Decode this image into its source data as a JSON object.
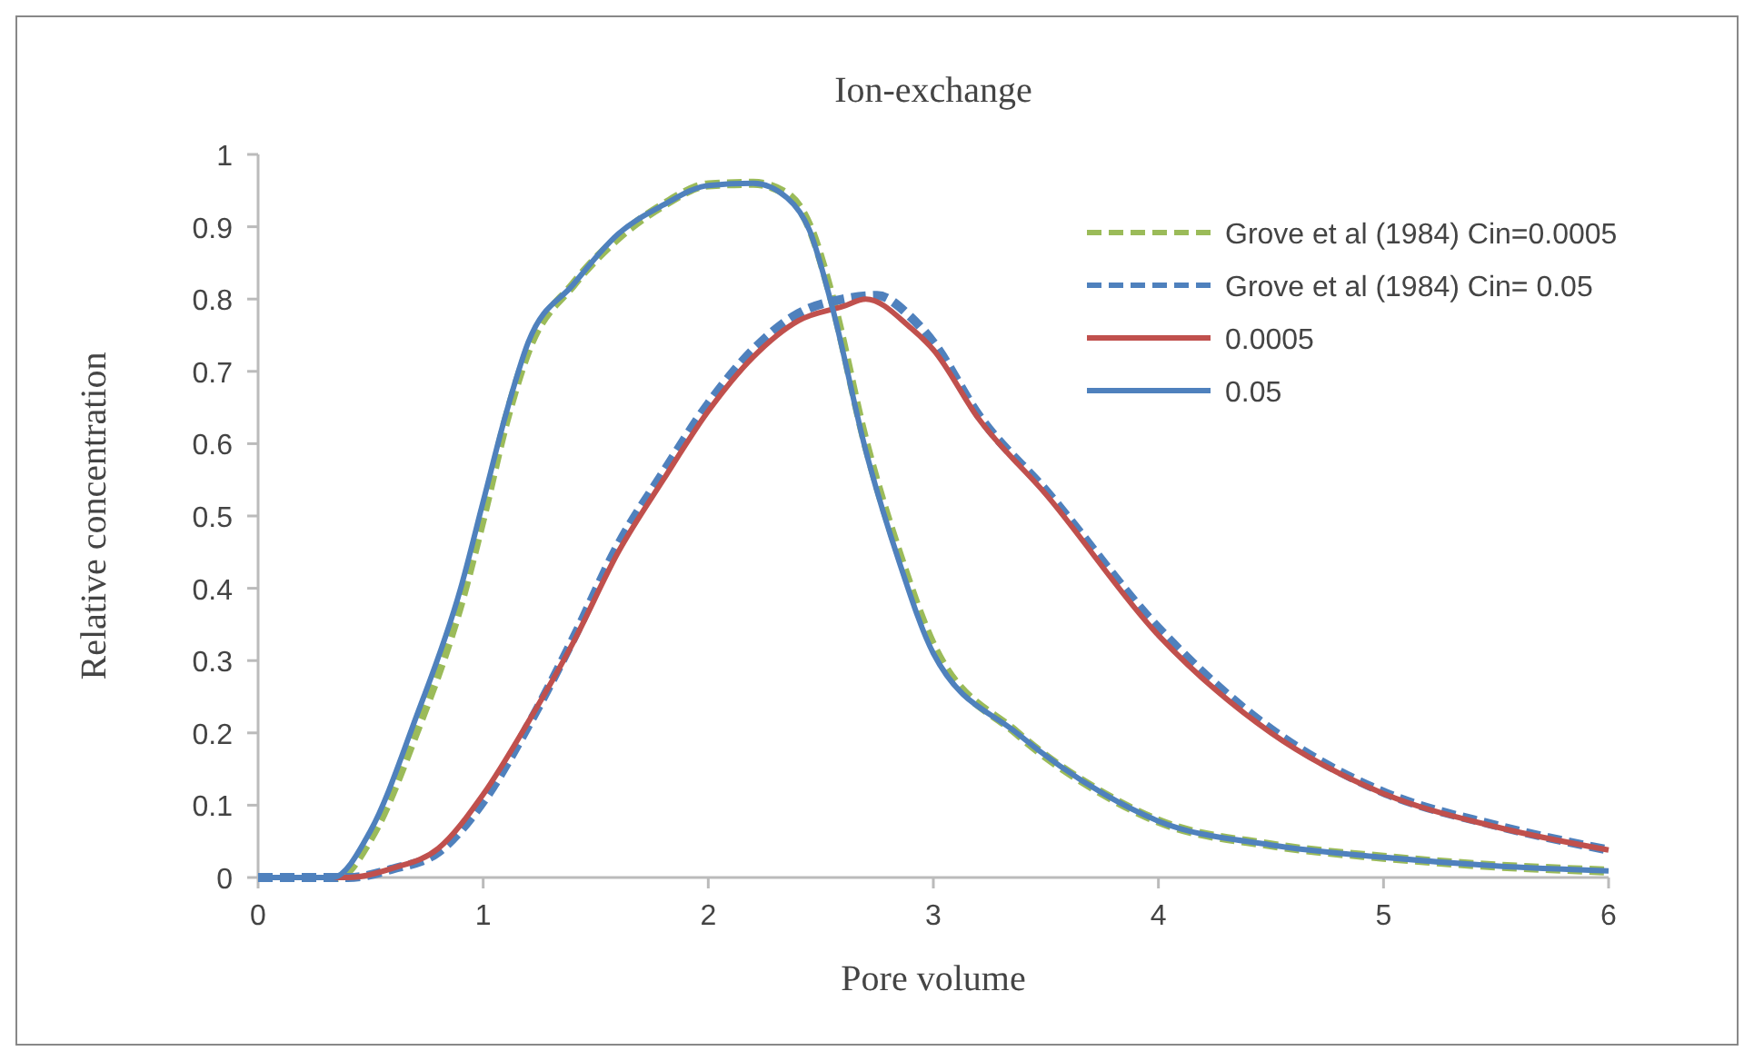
{
  "chart_data": {
    "type": "line",
    "title": "Ion-exchange",
    "xlabel": "Pore volume",
    "ylabel": "Relative concentration",
    "xlim": [
      0,
      6
    ],
    "xticks": [
      0,
      1,
      2,
      3,
      4,
      5,
      6
    ],
    "ylim": [
      0,
      1
    ],
    "yticks": [
      0,
      0.1,
      0.2,
      0.3,
      0.4,
      0.5,
      0.6,
      0.7,
      0.8,
      0.9,
      1
    ],
    "grid": false,
    "legend": "top right",
    "marker": "none",
    "series": [
      {
        "name": "Grove et al (1984) Cin=0.0005",
        "color": "#9bbb59",
        "line_style": "dashed",
        "x": [
          0,
          0.35,
          0.5,
          0.7,
          0.9,
          1.0,
          1.1,
          1.2,
          1.4,
          1.6,
          1.8,
          2.0,
          2.2,
          2.35,
          2.45,
          2.55,
          2.7,
          2.85,
          3.0,
          3.37,
          3.76,
          4,
          4.5,
          5,
          5.5,
          6
        ],
        "values": [
          0,
          0,
          0.055,
          0.2,
          0.38,
          0.5,
          0.63,
          0.73,
          0.82,
          0.885,
          0.93,
          0.958,
          0.96,
          0.945,
          0.9,
          0.8,
          0.6,
          0.445,
          0.32,
          0.2,
          0.115,
          0.078,
          0.045,
          0.028,
          0.016,
          0.009
        ]
      },
      {
        "name": "Grove et al (1984) Cin= 0.05",
        "color": "#4f81bd",
        "line_style": "dashed",
        "x": [
          0,
          0.4,
          0.6,
          0.8,
          1.0,
          1.2,
          1.4,
          1.6,
          1.8,
          2.0,
          2.2,
          2.4,
          2.6,
          2.75,
          2.9,
          3.0,
          3.2,
          3.5,
          4,
          4.5,
          5,
          5.5,
          6
        ],
        "values": [
          0,
          0,
          0.012,
          0.035,
          0.105,
          0.21,
          0.33,
          0.46,
          0.56,
          0.655,
          0.73,
          0.78,
          0.8,
          0.805,
          0.775,
          0.74,
          0.64,
          0.535,
          0.345,
          0.205,
          0.118,
          0.072,
          0.038
        ]
      },
      {
        "name": "0.0005",
        "color": "#c0504d",
        "line_style": "solid",
        "x": [
          0,
          0.4,
          0.6,
          0.8,
          1.0,
          1.2,
          1.4,
          1.6,
          1.8,
          2.0,
          2.2,
          2.4,
          2.6,
          2.7,
          2.9,
          3.0,
          3.2,
          3.5,
          4,
          4.5,
          5,
          5.5,
          6
        ],
        "values": [
          0,
          0,
          0.013,
          0.04,
          0.115,
          0.215,
          0.325,
          0.45,
          0.55,
          0.645,
          0.72,
          0.77,
          0.79,
          0.8,
          0.76,
          0.73,
          0.635,
          0.53,
          0.335,
          0.2,
          0.116,
          0.07,
          0.038
        ]
      },
      {
        "name": "0.05",
        "color": "#4f81bd",
        "line_style": "solid",
        "x": [
          0,
          0.33,
          0.5,
          0.7,
          0.9,
          1.0,
          1.1,
          1.2,
          1.4,
          1.6,
          1.8,
          2.0,
          2.2,
          2.35,
          2.45,
          2.55,
          2.7,
          2.85,
          3.0,
          3.37,
          3.76,
          4,
          4.5,
          5,
          5.5,
          6
        ],
        "values": [
          0,
          0,
          0.065,
          0.22,
          0.4,
          0.52,
          0.64,
          0.74,
          0.82,
          0.89,
          0.93,
          0.957,
          0.96,
          0.94,
          0.895,
          0.79,
          0.59,
          0.435,
          0.31,
          0.2,
          0.115,
          0.078,
          0.045,
          0.028,
          0.016,
          0.009
        ]
      }
    ]
  }
}
